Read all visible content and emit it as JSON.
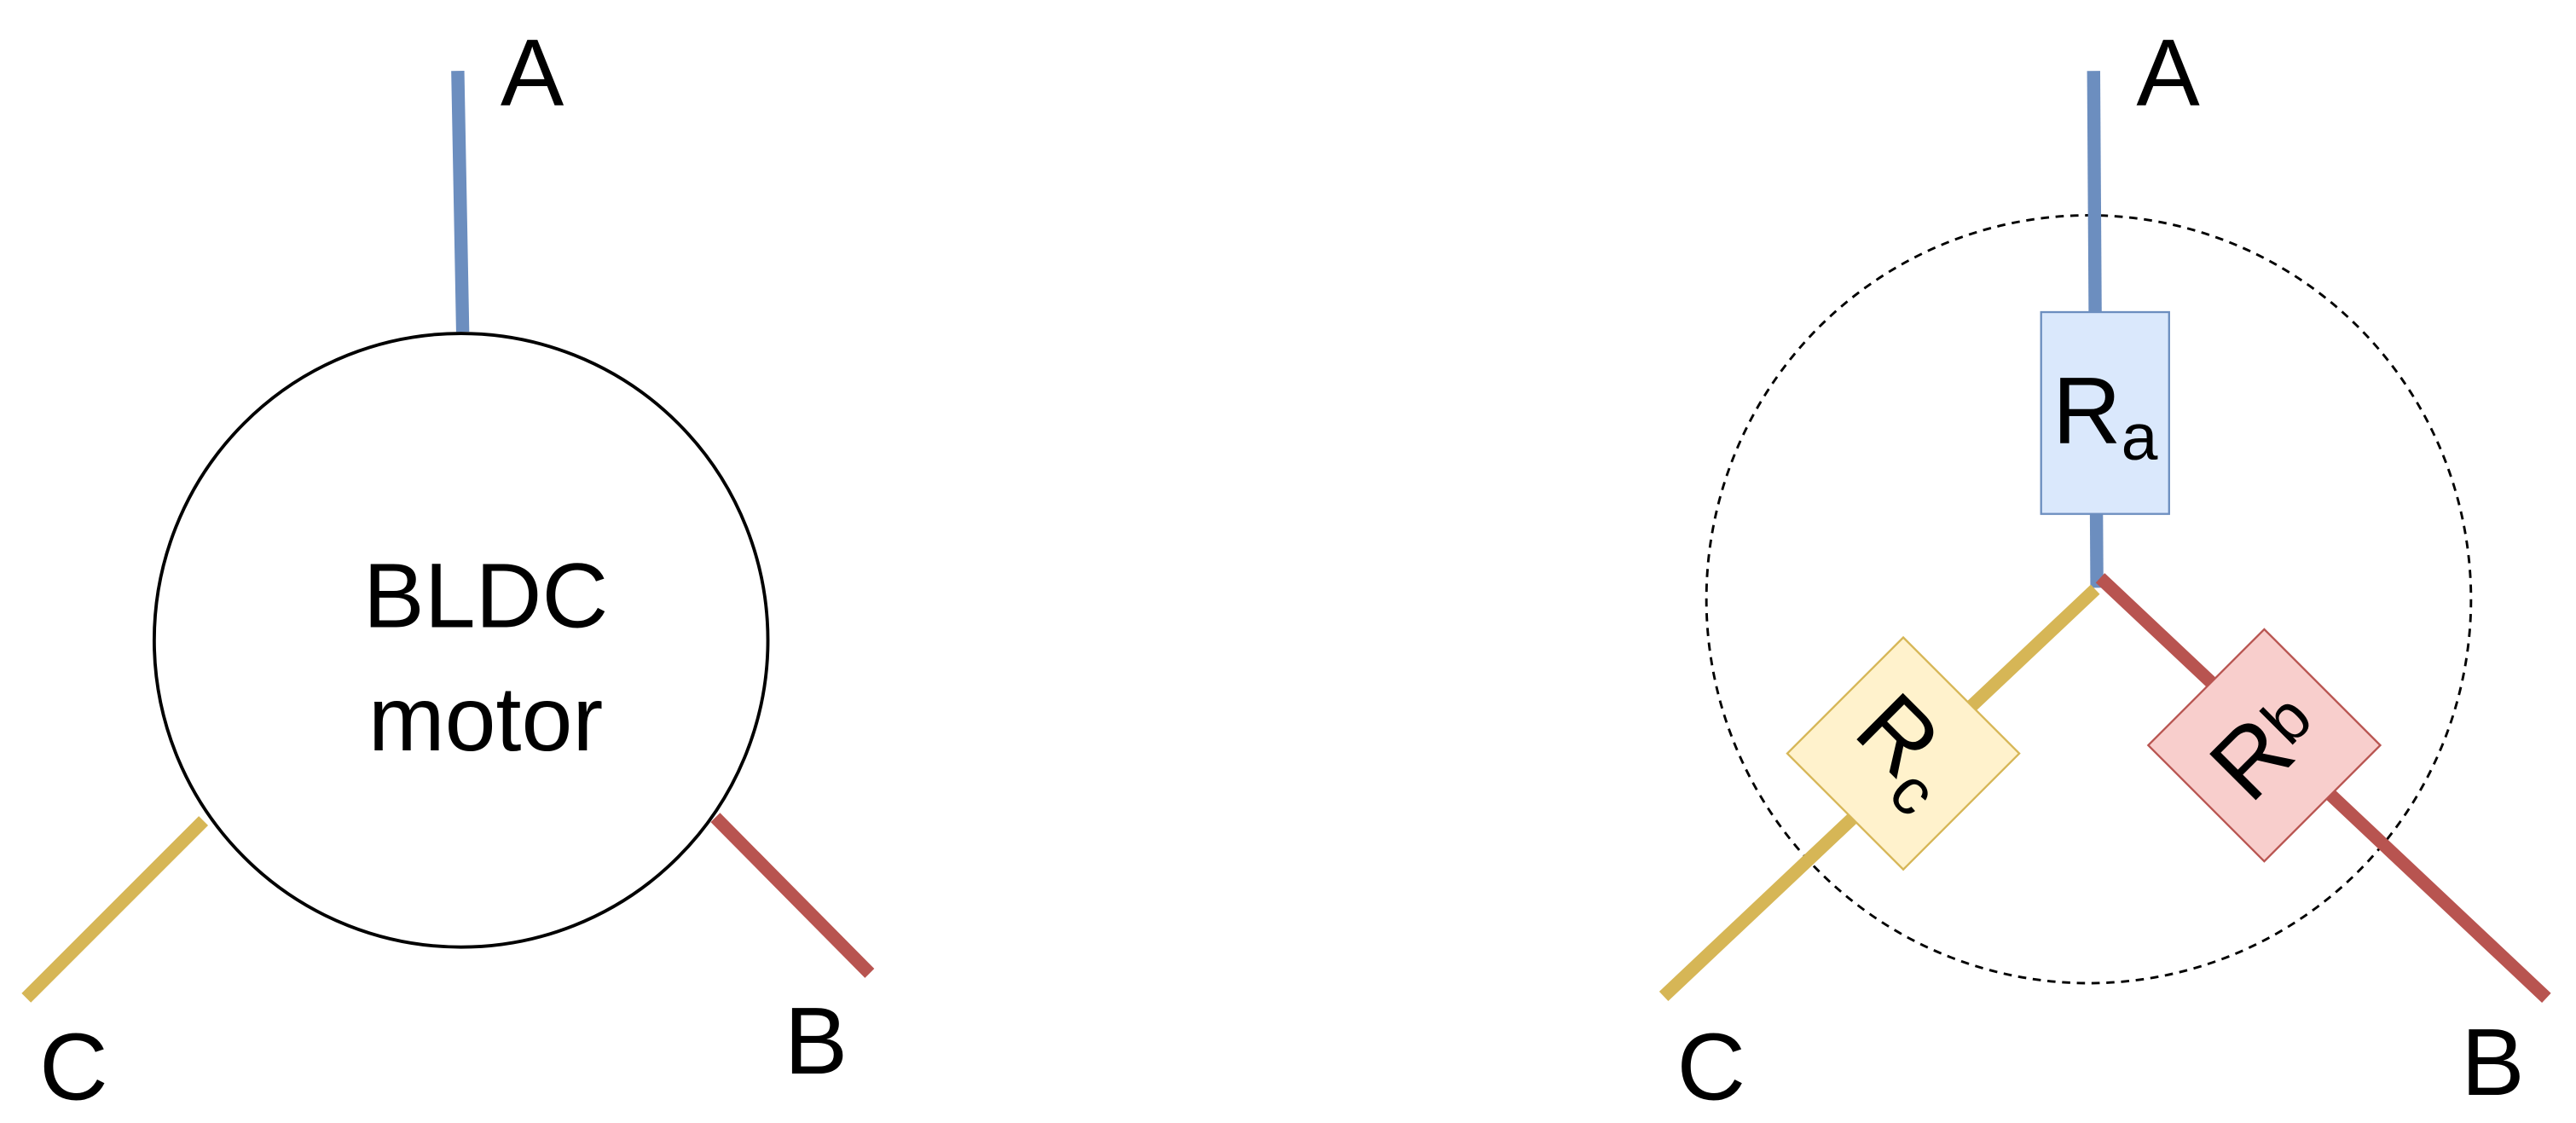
{
  "colors": {
    "phase_a": "#6C8EBF",
    "phase_b": "#B85450",
    "phase_c": "#D6B656",
    "resistor_a_fill": "#DAE8FC",
    "resistor_b_fill": "#F8CECC",
    "resistor_c_fill": "#FFF2CC",
    "stroke": "#000000"
  },
  "left": {
    "motor_line1": "BLDC",
    "motor_line2": "motor",
    "terminal_a": "A",
    "terminal_b": "B",
    "terminal_c": "C"
  },
  "right": {
    "terminal_a": "A",
    "terminal_b": "B",
    "terminal_c": "C",
    "resistor_a": {
      "base": "R",
      "sub": "a"
    },
    "resistor_b": {
      "base": "R",
      "sub": "b"
    },
    "resistor_c": {
      "base": "R",
      "sub": "c"
    }
  }
}
